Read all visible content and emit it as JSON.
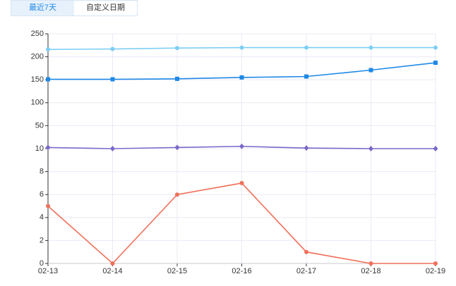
{
  "tabs": [
    {
      "label": "最近7天",
      "active": true
    },
    {
      "label": "自定义日期",
      "active": false
    }
  ],
  "chart_data": {
    "type": "line",
    "yscale": "segmented",
    "categories": [
      "02-13",
      "02-14",
      "02-15",
      "02-16",
      "02-17",
      "02-18",
      "02-19"
    ],
    "series": [
      {
        "color": "#7ecef4",
        "marker": "circle",
        "values": [
          216,
          217,
          219,
          220,
          220,
          220,
          220
        ]
      },
      {
        "color": "#1e88e5",
        "marker": "square",
        "values": [
          151,
          151,
          152,
          155,
          157,
          171,
          187
        ]
      },
      {
        "color": "#7b68c8",
        "marker": "diamond",
        "values": [
          12,
          10,
          12,
          14,
          11,
          10,
          10
        ]
      },
      {
        "color": "#f0705a",
        "marker": "circle",
        "values": [
          5,
          0,
          6,
          7,
          1,
          0,
          0
        ]
      }
    ],
    "ylim": [
      0,
      250
    ],
    "yticks": [
      0,
      2,
      4,
      6,
      8,
      10,
      50,
      100,
      150,
      200,
      250
    ],
    "grid": true
  }
}
